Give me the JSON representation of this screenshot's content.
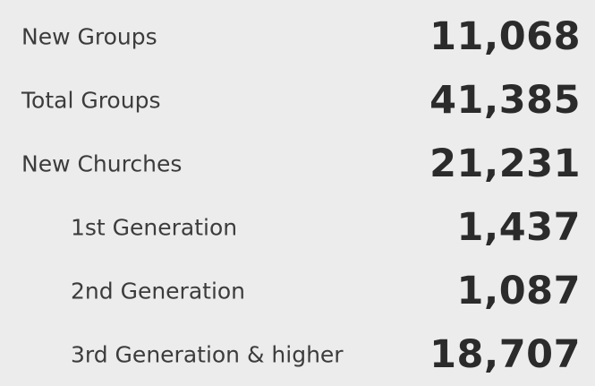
{
  "stats": [
    {
      "label": "New Groups",
      "value": "11,068"
    },
    {
      "label": "Total Groups",
      "value": "41,385"
    },
    {
      "label": "New Churches",
      "value": "21,231",
      "children": [
        {
          "label": "1st Generation",
          "value": "1,437"
        },
        {
          "label": "2nd Generation",
          "value": "1,087"
        },
        {
          "label": "3rd Generation & higher",
          "value": "18,707"
        }
      ]
    }
  ]
}
